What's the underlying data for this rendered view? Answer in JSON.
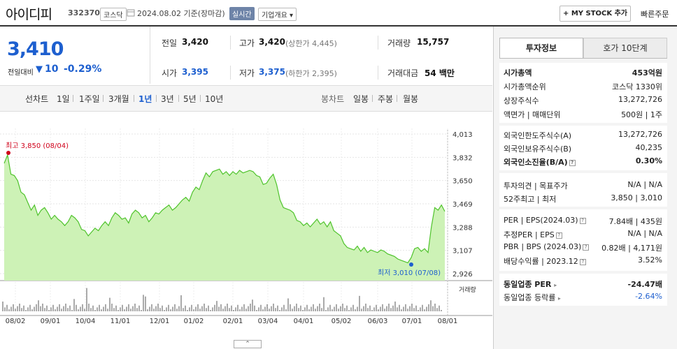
{
  "header": {
    "stock_name": "아이디피",
    "stock_code": "332370",
    "market": "코스닥",
    "base_date": "2024.08.02 기준(장마감)",
    "realtime": "실시간",
    "company_info": "기업개요 ▾",
    "mystock": "+ MY STOCK 추가",
    "quick_order": "빠른주문"
  },
  "price": {
    "current": "3,410",
    "change_label": "전일대비",
    "change_arrow": "▼",
    "change": "10",
    "change_pct": "-0.29%"
  },
  "quote": {
    "prev_label": "전일",
    "prev": "3,420",
    "high_label": "고가",
    "high": "3,420",
    "high_limit": "(상한가 4,445)",
    "volume_label": "거래량",
    "volume": "15,757",
    "open_label": "시가",
    "open": "3,395",
    "low_label": "저가",
    "low": "3,375",
    "low_limit": "(하한가 2,395)",
    "amount_label": "거래대금",
    "amount": "54 백만"
  },
  "periods": {
    "line_label": "선차트",
    "items": [
      "1일",
      "1주일",
      "3개월",
      "1년",
      "3년",
      "5년",
      "10년"
    ],
    "active": "1년",
    "candle_label": "봉차트",
    "candle_items": [
      "일봉",
      "주봉",
      "월봉"
    ]
  },
  "chart_data": {
    "type": "area",
    "x_ticks": [
      "08/02",
      "09/01",
      "10/04",
      "11/01",
      "12/01",
      "01/02",
      "02/01",
      "03/04",
      "04/01",
      "05/02",
      "06/03",
      "07/01",
      "08/01"
    ],
    "y_ticks": [
      "4,013",
      "3,832",
      "3,650",
      "3,469",
      "3,288",
      "3,107",
      "2,926"
    ],
    "ylim": [
      2926,
      4013
    ],
    "values": [
      3785,
      3850,
      3700,
      3690,
      3650,
      3560,
      3540,
      3480,
      3420,
      3460,
      3380,
      3420,
      3440,
      3400,
      3350,
      3380,
      3350,
      3330,
      3300,
      3330,
      3380,
      3360,
      3330,
      3270,
      3260,
      3220,
      3250,
      3280,
      3260,
      3300,
      3330,
      3300,
      3360,
      3400,
      3380,
      3350,
      3360,
      3320,
      3390,
      3420,
      3400,
      3360,
      3380,
      3330,
      3360,
      3400,
      3390,
      3420,
      3440,
      3460,
      3420,
      3440,
      3470,
      3500,
      3520,
      3490,
      3560,
      3600,
      3580,
      3650,
      3710,
      3680,
      3720,
      3730,
      3740,
      3700,
      3720,
      3690,
      3720,
      3700,
      3730,
      3710,
      3720,
      3730,
      3720,
      3690,
      3680,
      3620,
      3630,
      3670,
      3700,
      3620,
      3500,
      3440,
      3430,
      3420,
      3400,
      3340,
      3330,
      3300,
      3320,
      3290,
      3320,
      3350,
      3310,
      3330,
      3290,
      3330,
      3260,
      3240,
      3220,
      3160,
      3130,
      3120,
      3110,
      3140,
      3100,
      3130,
      3090,
      3110,
      3100,
      3090,
      3110,
      3100,
      3080,
      3070,
      3060,
      3040,
      3030,
      3020,
      3010,
      3050,
      3120,
      3130,
      3100,
      3120,
      3090,
      3290,
      3440,
      3420,
      3460,
      3410
    ],
    "high_label": "최고 3,850 (08/04)",
    "low_label": "최저 3,010 (07/08)",
    "volume_label": "거래량"
  },
  "invest": {
    "tab1": "투자정보",
    "tab2": "호가 10단계",
    "rows1": [
      {
        "label": "시가총액",
        "value": "453억원"
      },
      {
        "label": "시가총액순위",
        "value": "코스닥 1330위"
      },
      {
        "label": "상장주식수",
        "value": "13,272,726"
      },
      {
        "label": "액면가 | 매매단위",
        "value": "500원 | 1주"
      }
    ],
    "rows2": [
      {
        "label": "외국인한도주식수(A)",
        "value": "13,272,726"
      },
      {
        "label": "외국인보유주식수(B)",
        "value": "40,235"
      },
      {
        "label": "외국인소진율(B/A)",
        "value": "0.30%"
      }
    ],
    "rows3": [
      {
        "label": "투자의견 | 목표주가",
        "value": "N/A | N/A"
      },
      {
        "label": "52주최고 | 최저",
        "value": "3,850 | 3,010"
      }
    ],
    "rows4": [
      {
        "label": "PER | EPS(2024.03)",
        "value": "7.84배 | 435원"
      },
      {
        "label": "추정PER | EPS",
        "value": "N/A | N/A"
      },
      {
        "label": "PBR | BPS (2024.03)",
        "value": "0.82배 | 4,171원"
      },
      {
        "label": "배당수익률 | 2023.12",
        "value": "3.52%"
      }
    ],
    "rows5": [
      {
        "label": "동일업종 PER",
        "value": "-24.47배"
      },
      {
        "label": "동일업종 등락률",
        "value": "-2.64%"
      }
    ]
  },
  "colors": {
    "down": "#1d5fcf",
    "line": "#4fc32c",
    "fill": "#cdf2b6"
  }
}
